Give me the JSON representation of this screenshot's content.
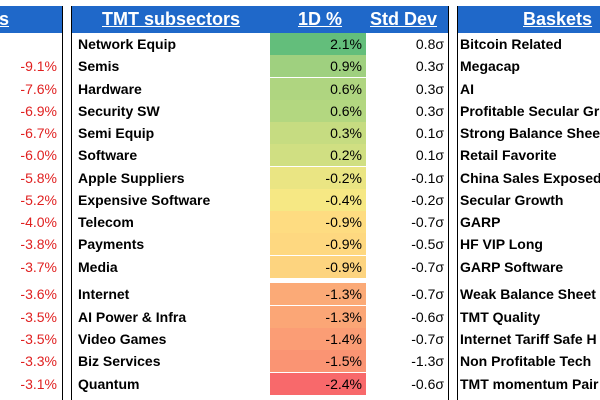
{
  "left_panel": {
    "header_fragment": "rs",
    "values": [
      "-9.1%",
      "-7.6%",
      "-6.9%",
      "-6.7%",
      "-6.0%",
      "-5.8%",
      "-5.2%",
      "-4.0%",
      "-3.8%",
      "-3.7%",
      "-3.6%",
      "-3.5%",
      "-3.5%",
      "-3.3%",
      "-3.1%"
    ]
  },
  "subsectors": {
    "header": {
      "name": "TMT subsectors",
      "oned": "1D %",
      "std": "Std Dev"
    },
    "rows": [
      {
        "name": "Network Equip",
        "oned": "2.1%",
        "std": "0.8σ",
        "color": "#63be7b"
      },
      {
        "name": "Semis",
        "oned": "0.9%",
        "std": "0.3σ",
        "color": "#9fd07f"
      },
      {
        "name": "Hardware",
        "oned": "0.6%",
        "std": "0.3σ",
        "color": "#afd580"
      },
      {
        "name": "Security SW",
        "oned": "0.6%",
        "std": "0.3σ",
        "color": "#b3d780"
      },
      {
        "name": "Semi Equip",
        "oned": "0.3%",
        "std": "0.1σ",
        "color": "#c6dc81"
      },
      {
        "name": "Software",
        "oned": "0.2%",
        "std": "0.1σ",
        "color": "#d0df82"
      },
      {
        "name": "Apple Suppliers",
        "oned": "-0.2%",
        "std": "-0.1σ",
        "color": "#eae583"
      },
      {
        "name": "Expensive Software",
        "oned": "-0.4%",
        "std": "-0.2σ",
        "color": "#f6e884"
      },
      {
        "name": "Telecom",
        "oned": "-0.9%",
        "std": "-0.7σ",
        "color": "#fedc81"
      },
      {
        "name": "Payments",
        "oned": "-0.9%",
        "std": "-0.5σ",
        "color": "#fed880"
      },
      {
        "name": "Media",
        "oned": "-0.9%",
        "std": "-0.7σ",
        "color": "#fdd47f"
      },
      {
        "name": "Internet",
        "oned": "-1.3%",
        "std": "-0.7σ",
        "color": "#fbaa77"
      },
      {
        "name": "AI Power & Infra",
        "oned": "-1.3%",
        "std": "-0.6σ",
        "color": "#fba676"
      },
      {
        "name": "Video Games",
        "oned": "-1.4%",
        "std": "-0.7σ",
        "color": "#fb9d75"
      },
      {
        "name": "Biz Services",
        "oned": "-1.5%",
        "std": "-1.3σ",
        "color": "#fa9473"
      },
      {
        "name": "Quantum",
        "oned": "-2.4%",
        "std": "-0.6σ",
        "color": "#f8696b"
      }
    ]
  },
  "baskets": {
    "header": "Baskets",
    "items": [
      "Bitcoin Related",
      "Megacap",
      "AI",
      "Profitable Secular Gr",
      "Strong Balance Sheet",
      "Retail Favorite",
      "China Sales Exposed",
      "Secular Growth",
      "GARP",
      "HF VIP Long",
      "GARP Software",
      "Weak Balance Sheet",
      "TMT Quality",
      "Internet Tariff Safe H",
      "Non Profitable Tech",
      "TMT momentum Pair"
    ]
  }
}
